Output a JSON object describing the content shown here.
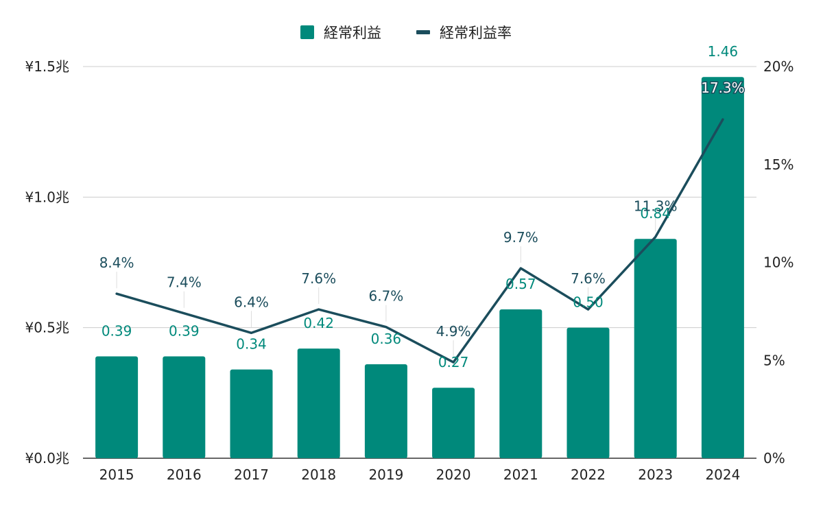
{
  "chart_data": {
    "type": "bar",
    "categories": [
      "2015",
      "2016",
      "2017",
      "2018",
      "2019",
      "2020",
      "2021",
      "2022",
      "2023",
      "2024"
    ],
    "series": [
      {
        "name": "経常利益",
        "type": "bar",
        "axis": "left",
        "values": [
          0.39,
          0.39,
          0.34,
          0.42,
          0.36,
          0.27,
          0.57,
          0.5,
          0.84,
          1.46
        ],
        "labels": [
          "0.39",
          "0.39",
          "0.34",
          "0.42",
          "0.36",
          "0.27",
          "0.57",
          "0.50",
          "0.84",
          "1.46"
        ]
      },
      {
        "name": "経常利益率",
        "type": "line",
        "axis": "right",
        "values": [
          8.4,
          7.4,
          6.4,
          7.6,
          6.7,
          4.9,
          9.7,
          7.6,
          11.3,
          17.3
        ],
        "labels": [
          "8.4%",
          "7.4%",
          "6.4%",
          "7.6%",
          "6.7%",
          "4.9%",
          "9.7%",
          "7.6%",
          "11.3%",
          "17.3%"
        ]
      }
    ],
    "y_left": {
      "range": [
        0,
        1.5
      ],
      "ticks": [
        0,
        0.5,
        1.0,
        1.5
      ],
      "tick_labels": [
        "¥0.0兆",
        "¥0.5兆",
        "¥1.0兆",
        "¥1.5兆"
      ]
    },
    "y_right": {
      "range": [
        0,
        20
      ],
      "ticks": [
        0,
        5,
        10,
        15,
        20
      ],
      "tick_labels": [
        "0%",
        "5%",
        "10%",
        "15%",
        "20%"
      ]
    },
    "legend_position": "top-center",
    "grid": true,
    "colors": {
      "bar": "#00897B",
      "line": "#1B4D5C",
      "bar_label": "#00897B",
      "line_label": "#1B4D5C",
      "grid": "#CCCCCC"
    }
  }
}
